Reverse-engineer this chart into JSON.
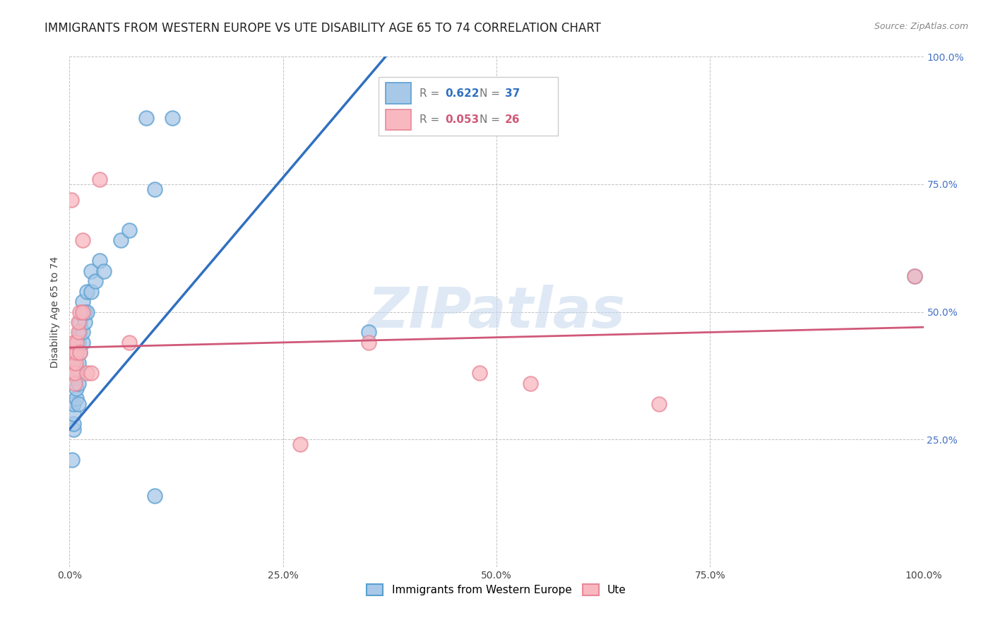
{
  "title": "IMMIGRANTS FROM WESTERN EUROPE VS UTE DISABILITY AGE 65 TO 74 CORRELATION CHART",
  "source": "Source: ZipAtlas.com",
  "ylabel": "Disability Age 65 to 74",
  "xlim": [
    0,
    1
  ],
  "ylim": [
    0,
    1
  ],
  "xticks": [
    0,
    0.25,
    0.5,
    0.75,
    1.0
  ],
  "yticks": [
    0,
    0.25,
    0.5,
    0.75,
    1.0
  ],
  "xticklabels": [
    "0.0%",
    "25.0%",
    "50.0%",
    "75.0%",
    "100.0%"
  ],
  "right_yticklabels": [
    "",
    "25.0%",
    "50.0%",
    "75.0%",
    "100.0%"
  ],
  "blue_R": 0.622,
  "blue_N": 37,
  "pink_R": 0.053,
  "pink_N": 26,
  "blue_color": "#a8c8e8",
  "blue_edge_color": "#5aa0d0",
  "pink_color": "#f8b8c0",
  "pink_edge_color": "#e88898",
  "trendline_blue_color": "#3070c0",
  "trendline_pink_color": "#d05878",
  "watermark": "ZIPatlas",
  "blue_scatter": [
    [
      0.005,
      0.27
    ],
    [
      0.005,
      0.28
    ],
    [
      0.005,
      0.3
    ],
    [
      0.005,
      0.32
    ],
    [
      0.008,
      0.33
    ],
    [
      0.008,
      0.35
    ],
    [
      0.008,
      0.37
    ],
    [
      0.008,
      0.39
    ],
    [
      0.01,
      0.32
    ],
    [
      0.01,
      0.36
    ],
    [
      0.01,
      0.4
    ],
    [
      0.01,
      0.44
    ],
    [
      0.012,
      0.42
    ],
    [
      0.012,
      0.46
    ],
    [
      0.012,
      0.48
    ],
    [
      0.015,
      0.44
    ],
    [
      0.015,
      0.46
    ],
    [
      0.015,
      0.5
    ],
    [
      0.015,
      0.52
    ],
    [
      0.018,
      0.48
    ],
    [
      0.018,
      0.5
    ],
    [
      0.02,
      0.5
    ],
    [
      0.02,
      0.54
    ],
    [
      0.025,
      0.54
    ],
    [
      0.025,
      0.58
    ],
    [
      0.03,
      0.56
    ],
    [
      0.035,
      0.6
    ],
    [
      0.04,
      0.58
    ],
    [
      0.06,
      0.64
    ],
    [
      0.07,
      0.66
    ],
    [
      0.09,
      0.88
    ],
    [
      0.1,
      0.74
    ],
    [
      0.1,
      0.14
    ],
    [
      0.12,
      0.88
    ],
    [
      0.35,
      0.46
    ],
    [
      0.99,
      0.57
    ],
    [
      0.003,
      0.21
    ]
  ],
  "pink_scatter": [
    [
      0.003,
      0.38
    ],
    [
      0.004,
      0.4
    ],
    [
      0.005,
      0.42
    ],
    [
      0.005,
      0.44
    ],
    [
      0.006,
      0.36
    ],
    [
      0.006,
      0.38
    ],
    [
      0.007,
      0.4
    ],
    [
      0.008,
      0.42
    ],
    [
      0.008,
      0.44
    ],
    [
      0.01,
      0.46
    ],
    [
      0.01,
      0.48
    ],
    [
      0.012,
      0.42
    ],
    [
      0.012,
      0.5
    ],
    [
      0.015,
      0.5
    ],
    [
      0.015,
      0.64
    ],
    [
      0.02,
      0.38
    ],
    [
      0.025,
      0.38
    ],
    [
      0.035,
      0.76
    ],
    [
      0.07,
      0.44
    ],
    [
      0.002,
      0.72
    ],
    [
      0.27,
      0.24
    ],
    [
      0.35,
      0.44
    ],
    [
      0.48,
      0.38
    ],
    [
      0.54,
      0.36
    ],
    [
      0.69,
      0.32
    ],
    [
      0.99,
      0.57
    ]
  ],
  "blue_trendline_x": [
    0.0,
    0.37
  ],
  "blue_trendline_y": [
    0.27,
    1.0
  ],
  "pink_trendline_x": [
    0.0,
    1.0
  ],
  "pink_trendline_y": [
    0.43,
    0.47
  ],
  "background_color": "#ffffff",
  "grid_color": "#bbbbbb",
  "title_fontsize": 12,
  "axis_label_fontsize": 10,
  "tick_fontsize": 10,
  "right_tick_color": "#4472c4"
}
